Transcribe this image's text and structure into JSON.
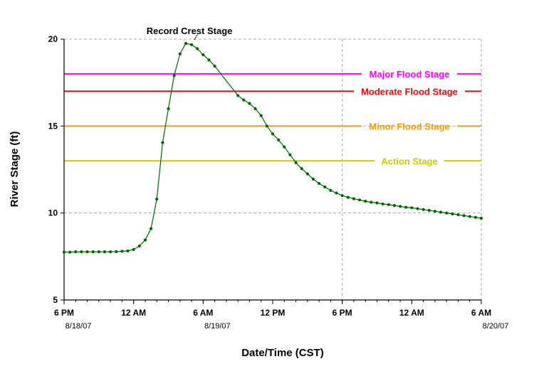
{
  "chart_data": {
    "type": "line",
    "xlabel": "Date/Time (CST)",
    "ylabel": "River Stage (ft)",
    "ylim": [
      5,
      20
    ],
    "xlim": [
      "2007-08-18 18:00",
      "2007-08-20 06:00"
    ],
    "grid": true,
    "y_ticks": [
      "5",
      "10",
      "15",
      "20"
    ],
    "x_ticks": [
      {
        "t": "2007-08-18 18:00",
        "label": "6 PM"
      },
      {
        "t": "2007-08-19 00:00",
        "label": "12 AM"
      },
      {
        "t": "2007-08-19 06:00",
        "label": "6 AM"
      },
      {
        "t": "2007-08-19 12:00",
        "label": "12 PM"
      },
      {
        "t": "2007-08-19 18:00",
        "label": "6 PM"
      },
      {
        "t": "2007-08-20 00:00",
        "label": "12 AM"
      },
      {
        "t": "2007-08-20 06:00",
        "label": "6 AM"
      }
    ],
    "date_labels": [
      {
        "t": "2007-08-18 18:00",
        "label": "8/18/07"
      },
      {
        "t": "2007-08-19 06:00",
        "label": "8/19/07"
      },
      {
        "t": "2007-08-20 06:00",
        "label": "8/20/07"
      }
    ],
    "vertical_gridline_at": "2007-08-19 18:00",
    "thresholds": [
      {
        "name": "Major Flood Stage",
        "value": 18,
        "color": "#ff00ff"
      },
      {
        "name": "Moderate Flood Stage",
        "value": 17,
        "color": "#ff0000"
      },
      {
        "name": "Minor Flood Stage",
        "value": 15,
        "color": "#ff9900"
      },
      {
        "name": "Action Stage",
        "value": 13,
        "color": "#cccc00"
      }
    ],
    "annotation": {
      "text": "Record Crest Stage",
      "t": "2007-08-19 05:00",
      "value": 19.75
    },
    "series": [
      {
        "color": "#006600",
        "points": [
          [
            "2007-08-18 18:00",
            7.75
          ],
          [
            "2007-08-18 18:30",
            7.75
          ],
          [
            "2007-08-18 19:00",
            7.77
          ],
          [
            "2007-08-18 19:30",
            7.77
          ],
          [
            "2007-08-18 20:00",
            7.77
          ],
          [
            "2007-08-18 20:30",
            7.77
          ],
          [
            "2007-08-18 21:00",
            7.77
          ],
          [
            "2007-08-18 21:30",
            7.77
          ],
          [
            "2007-08-18 22:00",
            7.77
          ],
          [
            "2007-08-18 22:30",
            7.78
          ],
          [
            "2007-08-18 23:00",
            7.8
          ],
          [
            "2007-08-18 23:30",
            7.82
          ],
          [
            "2007-08-19 00:00",
            7.9
          ],
          [
            "2007-08-19 00:30",
            8.1
          ],
          [
            "2007-08-19 01:00",
            8.45
          ],
          [
            "2007-08-19 01:30",
            9.1
          ],
          [
            "2007-08-19 02:00",
            10.8
          ],
          [
            "2007-08-19 02:30",
            14.05
          ],
          [
            "2007-08-19 03:00",
            16.0
          ],
          [
            "2007-08-19 03:30",
            17.9
          ],
          [
            "2007-08-19 04:00",
            19.15
          ],
          [
            "2007-08-19 04:30",
            19.75
          ],
          [
            "2007-08-19 05:00",
            19.68
          ],
          [
            "2007-08-19 05:30",
            19.45
          ],
          [
            "2007-08-19 06:00",
            19.1
          ],
          [
            "2007-08-19 06:30",
            18.8
          ],
          [
            "2007-08-19 07:00",
            18.45
          ],
          [
            "2007-08-19 09:00",
            16.75
          ],
          [
            "2007-08-19 09:30",
            16.5
          ],
          [
            "2007-08-19 10:00",
            16.3
          ],
          [
            "2007-08-19 10:30",
            16.0
          ],
          [
            "2007-08-19 11:00",
            15.6
          ],
          [
            "2007-08-19 11:30",
            15.0
          ],
          [
            "2007-08-19 12:00",
            14.55
          ],
          [
            "2007-08-19 12:30",
            14.2
          ],
          [
            "2007-08-19 13:00",
            13.8
          ],
          [
            "2007-08-19 13:30",
            13.35
          ],
          [
            "2007-08-19 14:00",
            12.9
          ],
          [
            "2007-08-19 14:30",
            12.55
          ],
          [
            "2007-08-19 15:00",
            12.25
          ],
          [
            "2007-08-19 15:30",
            11.95
          ],
          [
            "2007-08-19 16:00",
            11.7
          ],
          [
            "2007-08-19 16:30",
            11.5
          ],
          [
            "2007-08-19 17:00",
            11.3
          ],
          [
            "2007-08-19 17:30",
            11.15
          ],
          [
            "2007-08-19 18:00",
            11.0
          ],
          [
            "2007-08-19 18:30",
            10.9
          ],
          [
            "2007-08-19 19:00",
            10.82
          ],
          [
            "2007-08-19 19:30",
            10.75
          ],
          [
            "2007-08-19 20:00",
            10.68
          ],
          [
            "2007-08-19 20:30",
            10.62
          ],
          [
            "2007-08-19 21:00",
            10.58
          ],
          [
            "2007-08-19 21:30",
            10.52
          ],
          [
            "2007-08-19 22:00",
            10.48
          ],
          [
            "2007-08-19 22:30",
            10.43
          ],
          [
            "2007-08-19 23:00",
            10.38
          ],
          [
            "2007-08-19 23:30",
            10.33
          ],
          [
            "2007-08-20 00:00",
            10.3
          ],
          [
            "2007-08-20 00:30",
            10.25
          ],
          [
            "2007-08-20 01:00",
            10.2
          ],
          [
            "2007-08-20 01:30",
            10.15
          ],
          [
            "2007-08-20 02:00",
            10.1
          ],
          [
            "2007-08-20 02:30",
            10.05
          ],
          [
            "2007-08-20 03:00",
            10.0
          ],
          [
            "2007-08-20 03:30",
            9.95
          ],
          [
            "2007-08-20 04:00",
            9.9
          ],
          [
            "2007-08-20 04:30",
            9.85
          ],
          [
            "2007-08-20 05:00",
            9.8
          ],
          [
            "2007-08-20 05:30",
            9.75
          ],
          [
            "2007-08-20 06:00",
            9.7
          ]
        ]
      }
    ]
  }
}
